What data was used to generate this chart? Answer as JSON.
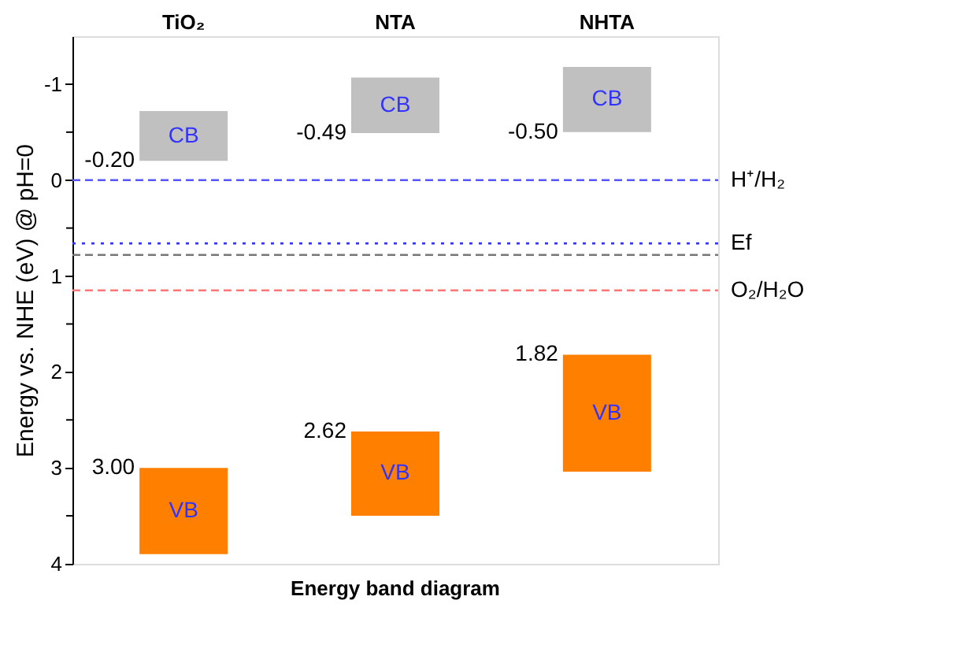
{
  "chart_data": {
    "type": "bar",
    "xlabel": "Energy band diagram",
    "ylabel": "Energy vs. NHE (eV) @ pH=0",
    "categories": [
      "TiO₂",
      "NTA",
      "NHTA"
    ],
    "series": [
      {
        "name": "CB",
        "color": "#c0c0c0",
        "base": [
          -0.2,
          -0.49,
          -0.5
        ],
        "values": [
          -0.52,
          -0.58,
          -0.68
        ]
      },
      {
        "name": "VB",
        "color": "#ff8000",
        "base": [
          3.0,
          2.62,
          1.82
        ],
        "values": [
          0.9,
          0.88,
          1.22
        ]
      }
    ],
    "annotations": [
      {
        "text": "-0.20",
        "x": "TiO₂",
        "y": -0.2
      },
      {
        "text": "-0.49",
        "x": "NTA",
        "y": -0.49
      },
      {
        "text": "-0.50",
        "x": "NHTA",
        "y": -0.5
      },
      {
        "text": "3.00",
        "x": "TiO₂",
        "y": 3.0
      },
      {
        "text": "2.62",
        "x": "NTA",
        "y": 2.62
      },
      {
        "text": "1.82",
        "x": "NHTA",
        "y": 1.82
      }
    ],
    "ylim": [
      4,
      -1.5
    ],
    "yticks": [
      -1,
      {
        "value": -0.5,
        "label": null
      },
      0,
      {
        "value": 0.5,
        "label": null
      },
      1,
      {
        "value": 1.5,
        "label": null
      },
      2,
      {
        "value": 2.5,
        "label": null
      },
      3,
      {
        "value": 3.5,
        "label": null
      },
      4
    ],
    "ref_lines": [
      {
        "axis": "y",
        "value": 0,
        "label": "H⁺/H₂",
        "color": "#5555ff",
        "line_style": "dashed"
      },
      {
        "axis": "y",
        "value": 1.15,
        "label": "O₂/H₂O",
        "color": "#ff7777",
        "line_style": "dashed"
      },
      {
        "axis": "y",
        "value": 0.66,
        "label": "Ef",
        "color": "#3333ff",
        "line_style": "dotted"
      },
      {
        "axis": "y",
        "value": 0.78,
        "color": "#777777",
        "line_style": "dashed"
      }
    ],
    "grid": false
  }
}
